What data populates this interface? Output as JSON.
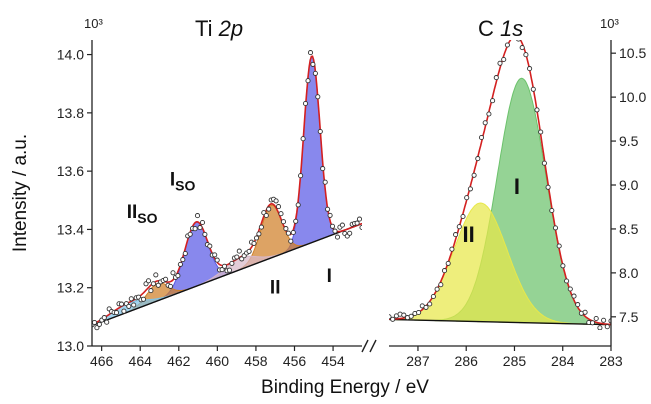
{
  "chart_data": [
    {
      "type": "line",
      "title": "Ti",
      "title_italic": "2p",
      "ylabel": "Intensity / a.u.",
      "y_exponent": "10³",
      "x_reversed": true,
      "xlim": [
        466.5,
        452.5
      ],
      "ylim": [
        13.0,
        14.05
      ],
      "x_ticks": [
        466,
        464,
        462,
        460,
        458,
        456,
        454
      ],
      "y_ticks": [
        13.0,
        13.2,
        13.4,
        13.6,
        13.8,
        14.0
      ],
      "background": {
        "x": [
          466.5,
          452.5
        ],
        "y": [
          13.07,
          13.42
        ]
      },
      "peaks": [
        {
          "label": "I",
          "center": 455.1,
          "height": 0.64,
          "width": 0.42,
          "color": "#5a5ae6"
        },
        {
          "label": "II",
          "center": 457.2,
          "height": 0.18,
          "width": 0.55,
          "color": "#d08028"
        },
        {
          "label": "I_SO",
          "center": 461.1,
          "height": 0.22,
          "width": 0.6,
          "color": "#5a5ae6"
        },
        {
          "label": "II_SO",
          "center": 463.1,
          "height": 0.06,
          "width": 0.55,
          "color": "#d08028"
        },
        {
          "label": "satellite",
          "center": 458.8,
          "height": 0.04,
          "width": 0.8,
          "color": "#d8b8c8"
        },
        {
          "label": "tail",
          "center": 464.6,
          "height": 0.03,
          "width": 0.9,
          "color": "#7fc4e8"
        }
      ],
      "annotations": [
        {
          "text": "I",
          "x": 454.2,
          "y": 13.22,
          "sub": ""
        },
        {
          "text": "II",
          "x": 457.0,
          "y": 13.18,
          "sub": ""
        },
        {
          "text": "I",
          "x": 461.8,
          "y": 13.55,
          "sub": "SO"
        },
        {
          "text": "II",
          "x": 463.9,
          "y": 13.44,
          "sub": "SO"
        }
      ]
    },
    {
      "type": "line",
      "title": "C",
      "title_italic": "1s",
      "y_exponent": "10³",
      "x_reversed": true,
      "xlim": [
        287.6,
        283.0
      ],
      "ylim": [
        7.35,
        10.65
      ],
      "x_ticks": [
        287,
        286,
        285,
        284,
        283
      ],
      "y_ticks": [
        7.5,
        8.0,
        8.5,
        9.0,
        9.5,
        10.0,
        10.5
      ],
      "y_ticks_display": [
        "7.5",
        "8.0",
        "8.5",
        "9.0",
        "9.5",
        "10.0",
        "10.5"
      ],
      "background": {
        "x": [
          287.6,
          283.0
        ],
        "y": [
          7.47,
          7.41
        ]
      },
      "peaks": [
        {
          "label": "I",
          "center": 284.85,
          "height": 2.78,
          "width": 0.5,
          "color": "#6cc26c"
        },
        {
          "label": "II",
          "center": 285.7,
          "height": 1.35,
          "width": 0.55,
          "color": "#e8e84a"
        }
      ],
      "annotations": [
        {
          "text": "I",
          "x": 284.95,
          "y": 8.9,
          "sub": ""
        },
        {
          "text": "II",
          "x": 285.95,
          "y": 8.35,
          "sub": ""
        }
      ]
    }
  ],
  "xlabel": "Binding Energy / eV",
  "colors": {
    "envelope": "#d42020",
    "background_line": "#111111",
    "points": "#333333"
  }
}
